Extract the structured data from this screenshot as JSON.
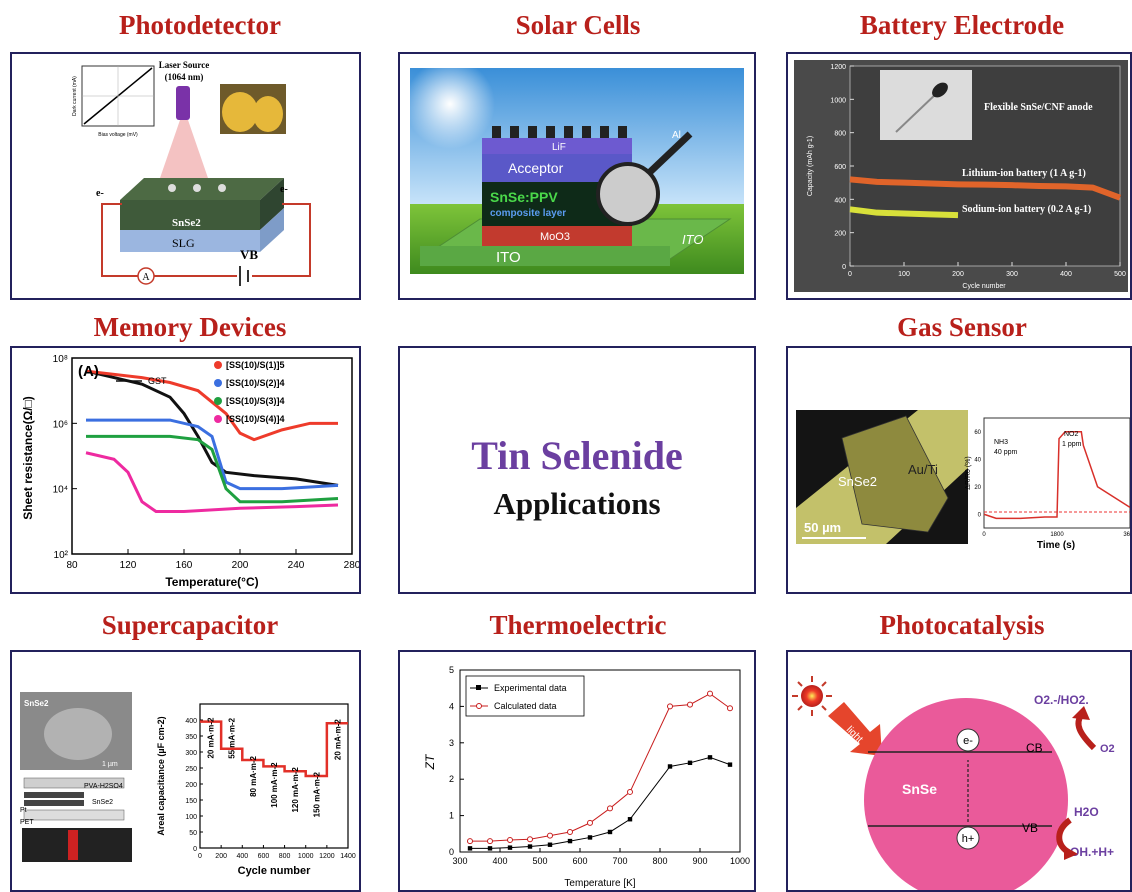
{
  "center": {
    "title": "Tin Selenide",
    "subtitle": "Applications",
    "title_color": "#6b3fa0"
  },
  "panels": {
    "photodetector": {
      "title": "Photodetector",
      "laser_label": "Laser Source",
      "laser_wavelength": "(1064 nm)",
      "x_axis": "Bias voltage (mV)",
      "y_axis": "Dark current (mA)",
      "material": "SnSe2",
      "substrate": "SLG",
      "electron_left": "e-",
      "electron_right": "e-",
      "ammeter": "A",
      "voltage": "VB"
    },
    "solar": {
      "title": "Solar Cells",
      "layers": [
        "LiF",
        "Acceptor",
        "SnSe:PPV",
        "composite layer",
        "MoO3",
        "ITO"
      ],
      "side_labels": [
        "Al",
        "ITO"
      ]
    },
    "battery": {
      "title": "Battery Electrode",
      "inset_label": "Flexible SnSe/CNF anode",
      "ylabel": "Capacity (mAh g-1)",
      "xlabel": "Cycle number",
      "yticks": [
        "1200",
        "1000",
        "800",
        "600",
        "400",
        "200",
        "0"
      ],
      "xticks": [
        "0",
        "100",
        "200",
        "300",
        "400",
        "500"
      ],
      "series": [
        {
          "name": "Lithium-ion battery (1 A g-1)",
          "color": "#e0642a"
        },
        {
          "name": "Sodium-ion battery (0.2 A g-1)",
          "color": "#d8e03a"
        }
      ]
    },
    "memory": {
      "title": "Memory Devices",
      "panel_tag": "(A)",
      "xlabel": "Temperature(°C)",
      "ylabel": "Sheet resistance(Ω/□)",
      "xticks": [
        "80",
        "120",
        "160",
        "200",
        "240",
        "280"
      ],
      "yticks": [
        "10⁸",
        "10⁶",
        "10⁴",
        "10²"
      ],
      "legend": [
        "GST",
        "[SS(10)/S(1)]5",
        "[SS(10)/S(2)]4",
        "[SS(10)/S(3)]4",
        "[SS(10)/S(4)]4"
      ],
      "colors": [
        "#111111",
        "#ee3b2b",
        "#3b6fe0",
        "#1fa040",
        "#ee2aa0"
      ]
    },
    "gas": {
      "title": "Gas Sensor",
      "material": "SnSe2",
      "electrode": "Au/Ti",
      "scale": "50 µm",
      "xlabel": "Time (s)",
      "ylabel": "ΔR/R0 (%)",
      "xticks": [
        "0",
        "1800",
        "3600"
      ],
      "yticks": [
        "60",
        "40",
        "20",
        "0"
      ],
      "gas1": "NH3",
      "gas1_conc": "40 ppm",
      "gas2": "NO2",
      "gas2_conc": "1 ppm"
    },
    "supercap": {
      "title": "Supercapacitor",
      "sem_label": "SnSe2",
      "scale": "1 µm",
      "layers": [
        "PVA-H2SO4",
        "SnSe2",
        "Pt",
        "PET"
      ],
      "ylabel": "Areal capacitance (µF cm-2)",
      "xlabel": "Cycle number",
      "xticks": [
        "0",
        "200",
        "400",
        "600",
        "800",
        "1000",
        "1200",
        "1400"
      ],
      "yticks": [
        "400",
        "350",
        "300",
        "250",
        "200",
        "150",
        "100",
        "50",
        "0"
      ],
      "rates": [
        "20 mA·m-2",
        "55 mA·m-2",
        "80 mA·m-2",
        "100 mA·m-2",
        "120 mA·m-2",
        "150 mA·m-2",
        "20 mA·m-2"
      ]
    },
    "thermo": {
      "title": "Thermoelectric",
      "xlabel": "Temperature [K]",
      "ylabel": "ZT",
      "xticks": [
        "300",
        "400",
        "500",
        "600",
        "700",
        "800",
        "900",
        "1000"
      ],
      "yticks": [
        "0",
        "1",
        "2",
        "3",
        "4",
        "5"
      ],
      "legend": [
        "Experimental data",
        "Calculated data"
      ]
    },
    "photocat": {
      "title": "Photocatalysis",
      "light": "light",
      "material": "SnSe",
      "electron": "e-",
      "hole": "h+",
      "cb": "CB",
      "vb": "VB",
      "superoxide": "O2.-/HO2.",
      "o2": "O2",
      "h2o": "H2O",
      "oh": "OH.+H+"
    }
  },
  "chart_data": [
    {
      "type": "line",
      "title": "Thermoelectric",
      "xlabel": "Temperature [K]",
      "ylabel": "ZT",
      "xlim": [
        300,
        1000
      ],
      "ylim": [
        0,
        5
      ],
      "series": [
        {
          "name": "Experimental data",
          "x": [
            325,
            375,
            425,
            475,
            525,
            575,
            625,
            675,
            725,
            825,
            875,
            925,
            975
          ],
          "y": [
            0.1,
            0.1,
            0.12,
            0.15,
            0.2,
            0.3,
            0.4,
            0.55,
            0.9,
            2.35,
            2.45,
            2.6,
            2.4
          ]
        },
        {
          "name": "Calculated data",
          "x": [
            325,
            375,
            425,
            475,
            525,
            575,
            625,
            675,
            725,
            825,
            875,
            925,
            975
          ],
          "y": [
            0.3,
            0.3,
            0.33,
            0.35,
            0.45,
            0.55,
            0.8,
            1.2,
            1.65,
            4.0,
            4.05,
            4.35,
            3.95
          ]
        }
      ]
    },
    {
      "type": "line",
      "title": "Battery Electrode",
      "xlabel": "Cycle number",
      "ylabel": "Capacity (mAh g-1)",
      "xlim": [
        0,
        500
      ],
      "ylim": [
        0,
        1200
      ],
      "series": [
        {
          "name": "Lithium-ion battery (1 A g-1)",
          "x": [
            0,
            50,
            100,
            150,
            200,
            250,
            300,
            350,
            400,
            450,
            500
          ],
          "y": [
            520,
            505,
            500,
            495,
            490,
            488,
            485,
            480,
            478,
            470,
            410
          ]
        },
        {
          "name": "Sodium-ion battery (0.2 A g-1)",
          "x": [
            0,
            50,
            100,
            150,
            200
          ],
          "y": [
            340,
            320,
            315,
            310,
            305
          ]
        }
      ]
    },
    {
      "type": "line",
      "title": "Memory Devices",
      "xlabel": "Temperature(°C)",
      "ylabel": "Sheet resistance(Ω/□)",
      "xlim": [
        80,
        280
      ],
      "ylim_log10": [
        2,
        8
      ],
      "series": [
        {
          "name": "GST",
          "x": [
            90,
            110,
            130,
            150,
            160,
            170,
            180,
            190,
            210,
            240,
            270
          ],
          "y_log10": [
            7.6,
            7.4,
            7.2,
            6.8,
            6.3,
            5.6,
            4.8,
            4.5,
            4.4,
            4.3,
            4.1
          ]
        },
        {
          "name": "[SS(10)/S(1)]5",
          "x": [
            90,
            110,
            130,
            150,
            170,
            190,
            200,
            210,
            230,
            250,
            270
          ],
          "y_log10": [
            7.6,
            7.5,
            7.4,
            7.25,
            7.0,
            6.3,
            5.7,
            5.5,
            5.8,
            6.0,
            6.0
          ]
        },
        {
          "name": "[SS(10)/S(2)]4",
          "x": [
            90,
            110,
            130,
            150,
            170,
            180,
            190,
            200,
            230,
            270
          ],
          "y_log10": [
            6.1,
            6.1,
            6.1,
            6.1,
            5.9,
            5.6,
            4.2,
            4.0,
            4.0,
            4.1
          ]
        },
        {
          "name": "[SS(10)/S(3)]4",
          "x": [
            90,
            110,
            130,
            150,
            170,
            180,
            190,
            200,
            230,
            270
          ],
          "y_log10": [
            5.6,
            5.6,
            5.6,
            5.6,
            5.5,
            5.2,
            4.0,
            3.6,
            3.6,
            3.7
          ]
        },
        {
          "name": "[SS(10)/S(4)]4",
          "x": [
            90,
            110,
            120,
            130,
            140,
            160,
            200,
            240,
            270
          ],
          "y_log10": [
            5.1,
            4.9,
            4.5,
            3.6,
            3.3,
            3.3,
            3.4,
            3.45,
            3.5
          ]
        }
      ]
    },
    {
      "type": "bar",
      "title": "Supercapacitor",
      "xlabel": "Cycle number",
      "ylabel": "Areal capacitance (µF cm-2)",
      "categories": [
        "20 mA·m-2",
        "55 mA·m-2",
        "80 mA·m-2",
        "100 mA·m-2",
        "120 mA·m-2",
        "150 mA·m-2",
        "20 mA·m-2"
      ],
      "values": [
        395,
        310,
        275,
        255,
        240,
        225,
        390
      ],
      "ylim": [
        0,
        450
      ]
    }
  ]
}
